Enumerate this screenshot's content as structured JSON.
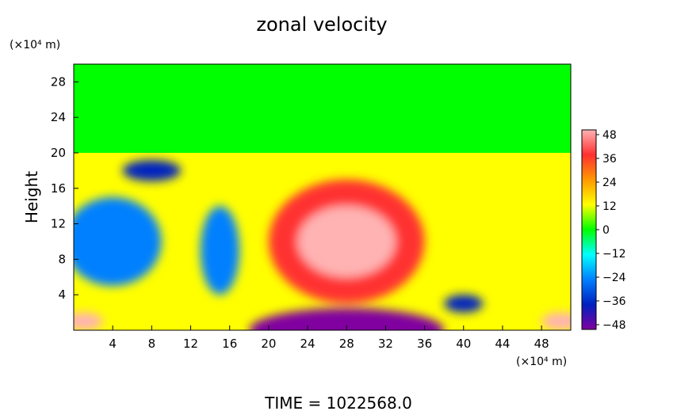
{
  "chart_data": {
    "type": "heatmap",
    "title": "zonal velocity",
    "ylabel": "Height",
    "y_unit": "(×10⁴ m)",
    "x_unit": "(×10⁴ m)",
    "footer": "TIME  =  1022568.0",
    "xlim": [
      0,
      51
    ],
    "ylim": [
      0,
      30
    ],
    "x_ticks": [
      4,
      8,
      12,
      16,
      20,
      24,
      28,
      32,
      36,
      40,
      44,
      48
    ],
    "y_ticks": [
      4,
      8,
      12,
      16,
      20,
      24,
      28
    ],
    "colorbar": {
      "ticks": [
        48,
        36,
        24,
        12,
        0,
        -12,
        -24,
        -36,
        -48
      ],
      "colors": [
        "#FFB3B3",
        "#FF3030",
        "#FF9900",
        "#FFFF00",
        "#00FF00",
        "#00FFFF",
        "#0080FF",
        "#0020C0",
        "#8000A0"
      ]
    },
    "features": [
      {
        "x": 28,
        "y": 10,
        "rx": 5,
        "ry": 4,
        "value": 48
      },
      {
        "x": 28,
        "y": 10,
        "rx": 8,
        "ry": 7,
        "value": 38
      },
      {
        "x": 8,
        "y": 18,
        "rx": 3,
        "ry": 1.2,
        "value": -40
      },
      {
        "x": 4,
        "y": 10,
        "rx": 5,
        "ry": 5,
        "value": -18
      },
      {
        "x": 15,
        "y": 9,
        "rx": 2,
        "ry": 5,
        "value": -24
      },
      {
        "x": 28,
        "y": 0,
        "rx": 10,
        "ry": 2.5,
        "value": -48
      },
      {
        "x": 40,
        "y": 3,
        "rx": 2,
        "ry": 1,
        "value": -36
      },
      {
        "x": 1,
        "y": 1,
        "rx": 2,
        "ry": 1,
        "value": 48
      },
      {
        "x": 50,
        "y": 1,
        "rx": 2,
        "ry": 1,
        "value": 48
      }
    ]
  }
}
